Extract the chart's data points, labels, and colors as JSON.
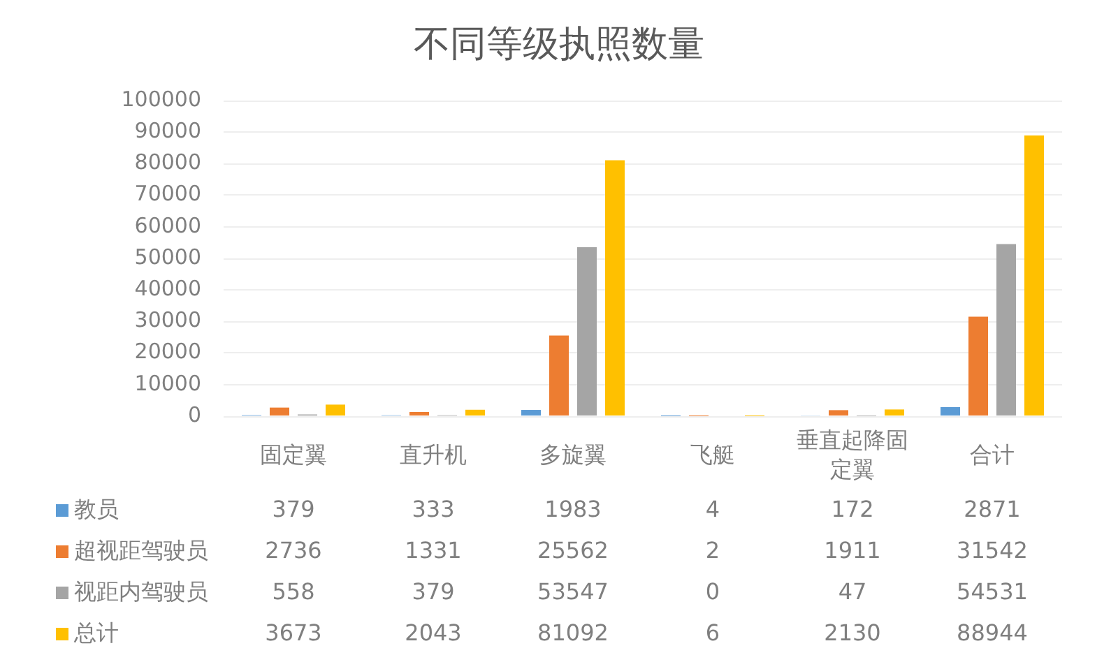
{
  "chart_data": {
    "type": "bar",
    "title": "不同等级执照数量",
    "categories": [
      "固定翼",
      "直升机",
      "多旋翼",
      "飞艇",
      "垂直起降固定翼",
      "合计"
    ],
    "series": [
      {
        "name": "教员",
        "color": "#5b9bd5",
        "values": [
          379,
          333,
          1983,
          4,
          172,
          2871
        ]
      },
      {
        "name": "超视距驾驶员",
        "color": "#ed7d31",
        "values": [
          2736,
          1331,
          25562,
          2,
          1911,
          31542
        ]
      },
      {
        "name": "视距内驾驶员",
        "color": "#a5a5a5",
        "values": [
          558,
          379,
          53547,
          0,
          47,
          54531
        ]
      },
      {
        "name": "总计",
        "color": "#ffc000",
        "values": [
          3673,
          2043,
          81092,
          6,
          2130,
          88944
        ]
      }
    ],
    "ylim": [
      0,
      100000
    ],
    "yticks": [
      0,
      10000,
      20000,
      30000,
      40000,
      50000,
      60000,
      70000,
      80000,
      90000,
      100000
    ],
    "grid": "y",
    "legend": "bottom left",
    "data_labels": true
  }
}
